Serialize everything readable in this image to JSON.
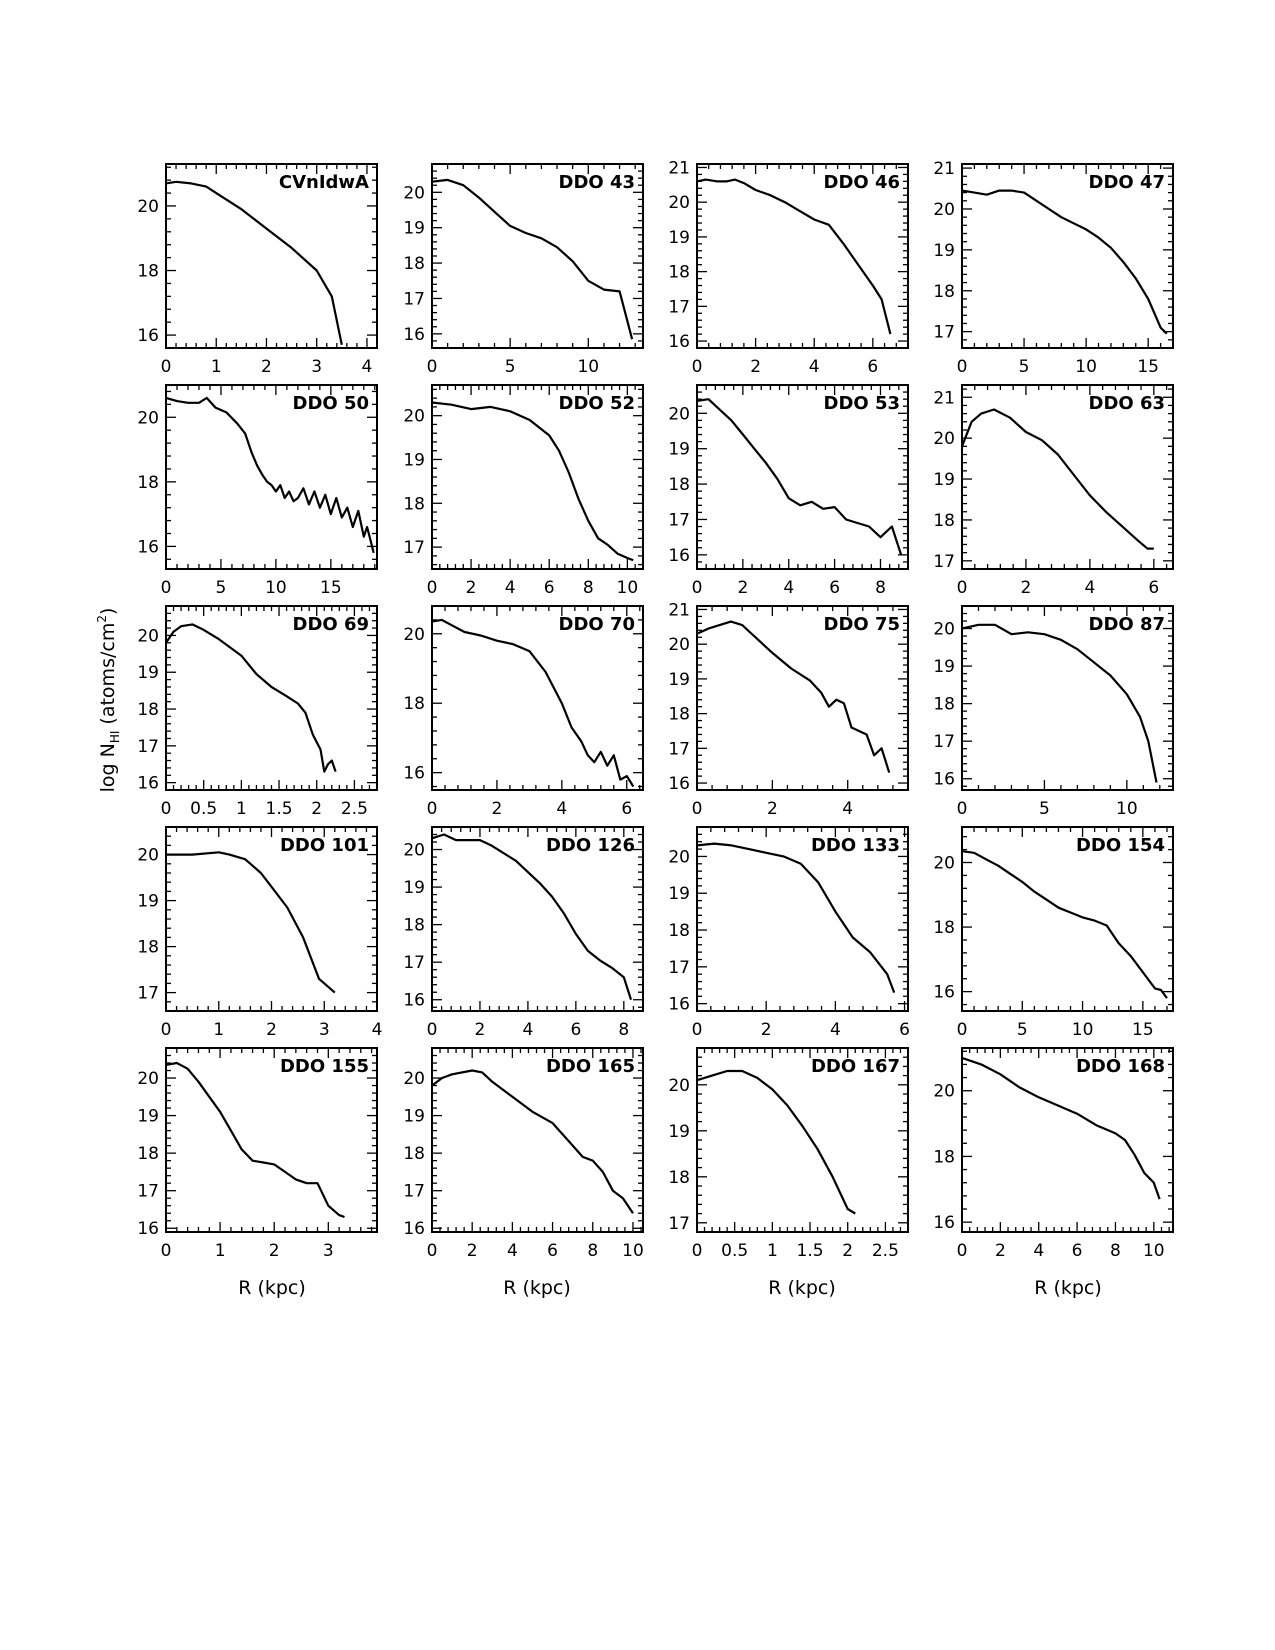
{
  "figure": {
    "ylabel_main": "log N",
    "ylabel_sub": "HI",
    "ylabel_unit": " (atoms/cm",
    "ylabel_sup": "2",
    "ylabel_close": ")",
    "xlabel": "R (kpc)"
  },
  "chart_data": [
    {
      "type": "line",
      "title": "CVnIdwA",
      "xlim": [
        0,
        4.2
      ],
      "ylim": [
        15.6,
        21.3
      ],
      "xticks": [
        0,
        1,
        2,
        3,
        4
      ],
      "yticks": [
        16,
        18,
        20
      ],
      "x": [
        0,
        0.2,
        0.5,
        0.8,
        1.0,
        1.5,
        2.0,
        2.5,
        3.0,
        3.3,
        3.5
      ],
      "y": [
        20.7,
        20.75,
        20.7,
        20.6,
        20.4,
        19.9,
        19.3,
        18.7,
        18.0,
        17.2,
        15.7
      ]
    },
    {
      "type": "line",
      "title": "DDO 43",
      "xlim": [
        0,
        13.5
      ],
      "ylim": [
        15.6,
        20.8
      ],
      "xticks": [
        0,
        5,
        10
      ],
      "yticks": [
        16,
        17,
        18,
        19,
        20
      ],
      "x": [
        0,
        1,
        2,
        3,
        4,
        5,
        6,
        7,
        8,
        9,
        10,
        11,
        12,
        12.8
      ],
      "y": [
        20.3,
        20.35,
        20.2,
        19.85,
        19.45,
        19.05,
        18.85,
        18.7,
        18.45,
        18.05,
        17.5,
        17.25,
        17.2,
        15.85
      ]
    },
    {
      "type": "line",
      "title": "DDO 46",
      "xlim": [
        0,
        7.2
      ],
      "ylim": [
        15.8,
        21.1
      ],
      "xticks": [
        0,
        2,
        4,
        6
      ],
      "yticks": [
        16,
        17,
        18,
        19,
        20,
        21
      ],
      "x": [
        0,
        0.3,
        0.7,
        1.0,
        1.3,
        1.6,
        2.0,
        2.5,
        3.0,
        3.5,
        4.0,
        4.5,
        5.0,
        5.5,
        6.0,
        6.3,
        6.6
      ],
      "y": [
        20.6,
        20.65,
        20.6,
        20.6,
        20.65,
        20.55,
        20.35,
        20.2,
        20.0,
        19.75,
        19.5,
        19.35,
        18.8,
        18.2,
        17.6,
        17.2,
        16.2
      ]
    },
    {
      "type": "line",
      "title": "DDO 47",
      "xlim": [
        0,
        17
      ],
      "ylim": [
        16.6,
        21.1
      ],
      "xticks": [
        0,
        5,
        10,
        15
      ],
      "yticks": [
        17,
        18,
        19,
        20,
        21
      ],
      "x": [
        0,
        1,
        2,
        3,
        4,
        5,
        6,
        7,
        8,
        9,
        10,
        11,
        12,
        13,
        14,
        15,
        16,
        16.5
      ],
      "y": [
        20.45,
        20.4,
        20.35,
        20.45,
        20.45,
        20.4,
        20.2,
        20.0,
        19.8,
        19.65,
        19.5,
        19.3,
        19.05,
        18.7,
        18.3,
        17.8,
        17.1,
        16.95
      ]
    },
    {
      "type": "line",
      "title": "DDO 50",
      "xlim": [
        0,
        19.2
      ],
      "ylim": [
        15.3,
        21.0
      ],
      "xticks": [
        0,
        5,
        10,
        15
      ],
      "yticks": [
        16,
        18,
        20
      ],
      "x": [
        0,
        1,
        2,
        3,
        3.7,
        4.5,
        5.5,
        6.5,
        7.2,
        7.8,
        8.3,
        8.8,
        9.2,
        9.6,
        10.0,
        10.4,
        10.8,
        11.2,
        11.6,
        12.0,
        12.5,
        13.0,
        13.5,
        14.0,
        14.5,
        15.0,
        15.5,
        16.0,
        16.5,
        17.0,
        17.5,
        18.0,
        18.3,
        18.6,
        18.9
      ],
      "y": [
        20.6,
        20.5,
        20.45,
        20.45,
        20.6,
        20.3,
        20.15,
        19.8,
        19.5,
        18.9,
        18.5,
        18.2,
        18.0,
        17.9,
        17.7,
        17.9,
        17.5,
        17.7,
        17.4,
        17.5,
        17.8,
        17.3,
        17.7,
        17.2,
        17.6,
        17.0,
        17.5,
        16.9,
        17.2,
        16.6,
        17.1,
        16.3,
        16.6,
        16.2,
        15.8
      ]
    },
    {
      "type": "line",
      "title": "DDO 52",
      "xlim": [
        0,
        10.8
      ],
      "ylim": [
        16.5,
        20.7
      ],
      "xticks": [
        0,
        2,
        4,
        6,
        8,
        10
      ],
      "yticks": [
        17,
        18,
        19,
        20
      ],
      "x": [
        0,
        1,
        2,
        3,
        4,
        5,
        6,
        6.5,
        7,
        7.5,
        8,
        8.5,
        9,
        9.5,
        10,
        10.3
      ],
      "y": [
        20.3,
        20.25,
        20.15,
        20.2,
        20.1,
        19.9,
        19.55,
        19.2,
        18.7,
        18.1,
        17.6,
        17.2,
        17.05,
        16.85,
        16.75,
        16.7
      ]
    },
    {
      "type": "line",
      "title": "DDO 53",
      "xlim": [
        0,
        9.2
      ],
      "ylim": [
        15.6,
        20.8
      ],
      "xticks": [
        0,
        2,
        4,
        6,
        8
      ],
      "yticks": [
        16,
        17,
        18,
        19,
        20
      ],
      "x": [
        0,
        0.5,
        1,
        1.5,
        2,
        2.5,
        3,
        3.5,
        4,
        4.5,
        5,
        5.5,
        6,
        6.5,
        7,
        7.5,
        8,
        8.5,
        8.9
      ],
      "y": [
        20.35,
        20.4,
        20.1,
        19.8,
        19.4,
        19.0,
        18.6,
        18.15,
        17.6,
        17.4,
        17.5,
        17.3,
        17.35,
        17.0,
        16.9,
        16.8,
        16.5,
        16.8,
        16.0
      ]
    },
    {
      "type": "line",
      "title": "DDO 63",
      "xlim": [
        0,
        6.6
      ],
      "ylim": [
        16.8,
        21.3
      ],
      "xticks": [
        0,
        2,
        4,
        6
      ],
      "yticks": [
        17,
        18,
        19,
        20,
        21
      ],
      "x": [
        0,
        0.3,
        0.6,
        1.0,
        1.5,
        2.0,
        2.5,
        3.0,
        3.5,
        4.0,
        4.5,
        5.0,
        5.5,
        5.8,
        6.0
      ],
      "y": [
        19.8,
        20.4,
        20.6,
        20.7,
        20.5,
        20.15,
        19.95,
        19.6,
        19.1,
        18.6,
        18.2,
        17.85,
        17.5,
        17.3,
        17.3
      ]
    },
    {
      "type": "line",
      "title": "DDO 69",
      "xlim": [
        0,
        2.8
      ],
      "ylim": [
        15.8,
        20.8
      ],
      "xticks": [
        0,
        0.5,
        1,
        1.5,
        2,
        2.5
      ],
      "yticks": [
        16,
        17,
        18,
        19,
        20
      ],
      "x": [
        0,
        0.1,
        0.2,
        0.35,
        0.5,
        0.7,
        1.0,
        1.2,
        1.4,
        1.6,
        1.75,
        1.85,
        1.95,
        2.05,
        2.1,
        2.15,
        2.2,
        2.25
      ],
      "y": [
        19.8,
        20.1,
        20.25,
        20.3,
        20.15,
        19.9,
        19.45,
        18.95,
        18.6,
        18.35,
        18.15,
        17.9,
        17.3,
        16.9,
        16.3,
        16.5,
        16.6,
        16.3
      ]
    },
    {
      "type": "line",
      "title": "DDO 70",
      "xlim": [
        0,
        6.5
      ],
      "ylim": [
        15.5,
        20.8
      ],
      "xticks": [
        0,
        2,
        4,
        6
      ],
      "yticks": [
        16,
        18,
        20
      ],
      "x": [
        0,
        0.3,
        0.7,
        1.0,
        1.5,
        2.0,
        2.5,
        3.0,
        3.5,
        4.0,
        4.3,
        4.6,
        4.8,
        5.0,
        5.2,
        5.4,
        5.6,
        5.8,
        6.0,
        6.2
      ],
      "y": [
        20.35,
        20.4,
        20.2,
        20.05,
        19.95,
        19.8,
        19.7,
        19.5,
        18.9,
        18.0,
        17.3,
        16.9,
        16.5,
        16.3,
        16.6,
        16.2,
        16.5,
        15.8,
        15.9,
        15.6
      ]
    },
    {
      "type": "line",
      "title": "DDO 75",
      "xlim": [
        0,
        5.6
      ],
      "ylim": [
        15.8,
        21.1
      ],
      "xticks": [
        0,
        2,
        4
      ],
      "yticks": [
        16,
        17,
        18,
        19,
        20,
        21
      ],
      "x": [
        0,
        0.3,
        0.6,
        0.9,
        1.2,
        1.5,
        2.0,
        2.5,
        3.0,
        3.3,
        3.5,
        3.7,
        3.9,
        4.1,
        4.3,
        4.5,
        4.7,
        4.9,
        5.1
      ],
      "y": [
        20.3,
        20.45,
        20.55,
        20.65,
        20.55,
        20.25,
        19.75,
        19.3,
        18.95,
        18.6,
        18.2,
        18.4,
        18.3,
        17.6,
        17.5,
        17.4,
        16.8,
        17.0,
        16.3
      ]
    },
    {
      "type": "line",
      "title": "DDO 87",
      "xlim": [
        0,
        12.8
      ],
      "ylim": [
        15.7,
        20.6
      ],
      "xticks": [
        0,
        5,
        10
      ],
      "yticks": [
        16,
        17,
        18,
        19,
        20
      ],
      "x": [
        0,
        0.5,
        1,
        2,
        3,
        4,
        5,
        6,
        7,
        8,
        9,
        10,
        10.8,
        11.3,
        11.8
      ],
      "y": [
        20.0,
        20.05,
        20.1,
        20.1,
        19.85,
        19.9,
        19.85,
        19.7,
        19.45,
        19.1,
        18.75,
        18.25,
        17.65,
        17.0,
        15.9
      ]
    },
    {
      "type": "line",
      "title": "DDO 101",
      "xlim": [
        0,
        4
      ],
      "ylim": [
        16.6,
        20.6
      ],
      "xticks": [
        0,
        1,
        2,
        3,
        4
      ],
      "yticks": [
        17,
        18,
        19,
        20
      ],
      "x": [
        0,
        0.5,
        1.0,
        1.2,
        1.5,
        1.8,
        2.0,
        2.3,
        2.6,
        2.9,
        3.2
      ],
      "y": [
        20.0,
        20.0,
        20.05,
        20.0,
        19.9,
        19.6,
        19.3,
        18.85,
        18.2,
        17.3,
        17.0
      ]
    },
    {
      "type": "line",
      "title": "DDO 126",
      "xlim": [
        0,
        8.8
      ],
      "ylim": [
        15.7,
        20.6
      ],
      "xticks": [
        0,
        2,
        4,
        6,
        8
      ],
      "yticks": [
        16,
        17,
        18,
        19,
        20
      ],
      "x": [
        0,
        0.5,
        1,
        1.5,
        2,
        2.5,
        3,
        3.5,
        4,
        4.5,
        5,
        5.5,
        6,
        6.5,
        7,
        7.5,
        8,
        8.3
      ],
      "y": [
        20.3,
        20.4,
        20.25,
        20.25,
        20.25,
        20.1,
        19.9,
        19.7,
        19.4,
        19.1,
        18.75,
        18.3,
        17.75,
        17.3,
        17.05,
        16.85,
        16.6,
        16.0
      ]
    },
    {
      "type": "line",
      "title": "DDO 133",
      "xlim": [
        0,
        6.1
      ],
      "ylim": [
        15.8,
        20.8
      ],
      "xticks": [
        0,
        2,
        4,
        6
      ],
      "yticks": [
        16,
        17,
        18,
        19,
        20
      ],
      "x": [
        0,
        0.5,
        1,
        1.5,
        2,
        2.5,
        3,
        3.5,
        4,
        4.5,
        5,
        5.5,
        5.7
      ],
      "y": [
        20.3,
        20.35,
        20.3,
        20.2,
        20.1,
        20.0,
        19.8,
        19.3,
        18.5,
        17.8,
        17.4,
        16.8,
        16.3
      ]
    },
    {
      "type": "line",
      "title": "DDO 154",
      "xlim": [
        0,
        17.5
      ],
      "ylim": [
        15.4,
        21.1
      ],
      "xticks": [
        0,
        5,
        10,
        15
      ],
      "yticks": [
        16,
        18,
        20
      ],
      "x": [
        0,
        1,
        2,
        3,
        4,
        5,
        6,
        7,
        8,
        9,
        10,
        11,
        12,
        13,
        14,
        15,
        16,
        16.5,
        17
      ],
      "y": [
        20.35,
        20.3,
        20.1,
        19.9,
        19.65,
        19.4,
        19.1,
        18.85,
        18.6,
        18.45,
        18.3,
        18.2,
        18.05,
        17.5,
        17.1,
        16.6,
        16.1,
        16.05,
        15.8
      ]
    },
    {
      "type": "line",
      "title": "DDO 155",
      "xlim": [
        0,
        3.9
      ],
      "ylim": [
        15.9,
        20.8
      ],
      "xticks": [
        0,
        1,
        2,
        3
      ],
      "yticks": [
        16,
        17,
        18,
        19,
        20
      ],
      "x": [
        0,
        0.2,
        0.4,
        0.6,
        0.8,
        1.0,
        1.2,
        1.4,
        1.6,
        1.8,
        2.0,
        2.2,
        2.4,
        2.6,
        2.8,
        3.0,
        3.2,
        3.3
      ],
      "y": [
        20.35,
        20.4,
        20.25,
        19.9,
        19.5,
        19.1,
        18.6,
        18.1,
        17.8,
        17.75,
        17.7,
        17.5,
        17.3,
        17.2,
        17.2,
        16.6,
        16.35,
        16.3
      ]
    },
    {
      "type": "line",
      "title": "DDO 165",
      "xlim": [
        0,
        10.5
      ],
      "ylim": [
        15.9,
        20.8
      ],
      "xticks": [
        0,
        2,
        4,
        6,
        8,
        10
      ],
      "yticks": [
        16,
        17,
        18,
        19,
        20
      ],
      "x": [
        0,
        0.5,
        1,
        2,
        2.5,
        3,
        3.5,
        4,
        5,
        6,
        7,
        7.5,
        8,
        8.5,
        9,
        9.5,
        10
      ],
      "y": [
        19.8,
        20.0,
        20.1,
        20.2,
        20.15,
        19.9,
        19.7,
        19.5,
        19.1,
        18.8,
        18.2,
        17.9,
        17.8,
        17.5,
        17.0,
        16.8,
        16.4
      ]
    },
    {
      "type": "line",
      "title": "DDO 167",
      "xlim": [
        0,
        2.8
      ],
      "ylim": [
        16.8,
        20.8
      ],
      "xticks": [
        0,
        0.5,
        1,
        1.5,
        2,
        2.5
      ],
      "yticks": [
        17,
        18,
        19,
        20
      ],
      "x": [
        0,
        0.2,
        0.4,
        0.6,
        0.8,
        1.0,
        1.2,
        1.4,
        1.6,
        1.8,
        2.0,
        2.1
      ],
      "y": [
        20.1,
        20.2,
        20.3,
        20.3,
        20.15,
        19.9,
        19.55,
        19.1,
        18.6,
        18.0,
        17.3,
        17.2
      ]
    },
    {
      "type": "line",
      "title": "DDO 168",
      "xlim": [
        0,
        11
      ],
      "ylim": [
        15.7,
        21.3
      ],
      "xticks": [
        0,
        2,
        4,
        6,
        8,
        10
      ],
      "yticks": [
        16,
        18,
        20
      ],
      "x": [
        0,
        1,
        2,
        3,
        4,
        5,
        6,
        7,
        8,
        8.5,
        9,
        9.5,
        10,
        10.3
      ],
      "y": [
        21.0,
        20.8,
        20.5,
        20.1,
        19.8,
        19.55,
        19.3,
        18.95,
        18.7,
        18.5,
        18.05,
        17.5,
        17.2,
        16.7
      ]
    }
  ]
}
